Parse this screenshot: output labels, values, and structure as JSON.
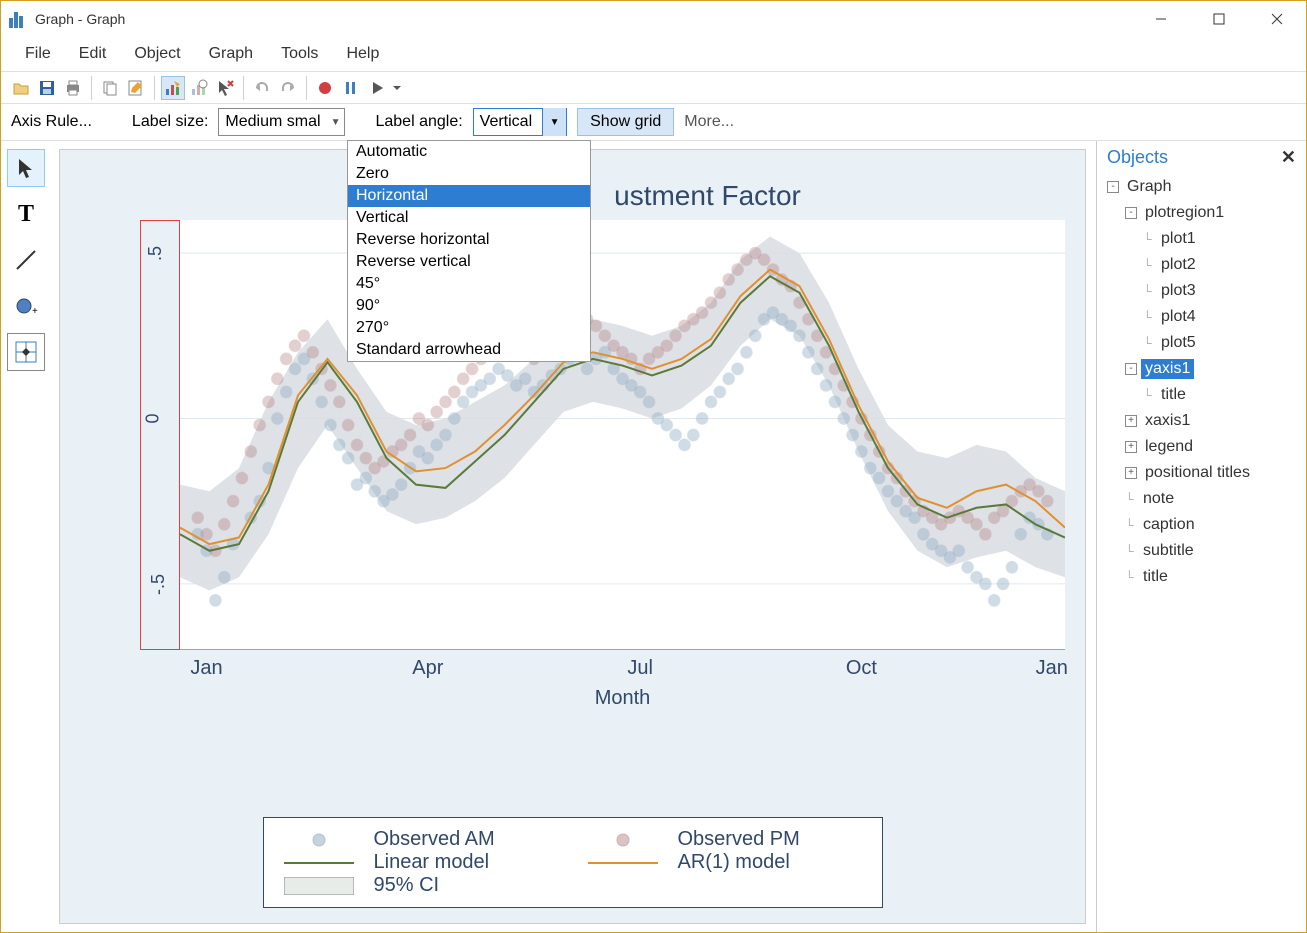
{
  "window": {
    "title": "Graph - Graph"
  },
  "menu": {
    "items": [
      "File",
      "Edit",
      "Object",
      "Graph",
      "Tools",
      "Help"
    ]
  },
  "toolbar2": {
    "axis_rule": "Axis Rule...",
    "label_size_label": "Label size:",
    "label_size_value": "Medium smal",
    "label_angle_label": "Label angle:",
    "label_angle_value": "Vertical",
    "show_grid": "Show grid",
    "more": "More..."
  },
  "dropdown": {
    "options": [
      "Automatic",
      "Zero",
      "Horizontal",
      "Vertical",
      "Reverse horizontal",
      "Reverse vertical",
      "45°",
      "90°",
      "270°",
      "Standard arrowhead"
    ],
    "selected": "Horizontal"
  },
  "chart": {
    "title_suffix": "ustment Factor",
    "x_title": "Month",
    "x_ticks": [
      "Jan",
      "Apr",
      "Jul",
      "Oct",
      "Jan"
    ],
    "x_tick_pos": [
      0.03,
      0.28,
      0.52,
      0.77,
      0.985
    ],
    "y_ticks": [
      "-.5",
      "0",
      ".5"
    ],
    "y_tick_vals": [
      -0.5,
      0,
      0.5
    ],
    "ylim": [
      -0.7,
      0.6
    ],
    "grid_y": [
      -0.5,
      0,
      0.5
    ],
    "ci_upper": [
      -0.2,
      -0.22,
      -0.15,
      0.05,
      0.2,
      0.3,
      0.15,
      0.02,
      -0.02,
      0.0,
      0.05,
      0.1,
      0.18,
      0.28,
      0.3,
      0.28,
      0.25,
      0.28,
      0.35,
      0.48,
      0.55,
      0.5,
      0.35,
      0.15,
      -0.02,
      -0.1,
      -0.12,
      -0.08,
      -0.1,
      -0.18,
      -0.22
    ],
    "ci_lower": [
      -0.48,
      -0.52,
      -0.48,
      -0.35,
      -0.15,
      -0.02,
      -0.15,
      -0.28,
      -0.32,
      -0.3,
      -0.25,
      -0.18,
      -0.08,
      0.02,
      0.05,
      0.03,
      0.0,
      0.03,
      0.1,
      0.22,
      0.3,
      0.25,
      0.1,
      -0.1,
      -0.28,
      -0.4,
      -0.45,
      -0.42,
      -0.4,
      -0.45,
      -0.48
    ],
    "linear": [
      -0.35,
      -0.4,
      -0.38,
      -0.22,
      0.05,
      0.17,
      0.05,
      -0.12,
      -0.2,
      -0.21,
      -0.13,
      -0.05,
      0.05,
      0.15,
      0.18,
      0.16,
      0.13,
      0.16,
      0.22,
      0.35,
      0.43,
      0.38,
      0.22,
      0.02,
      -0.15,
      -0.26,
      -0.3,
      -0.27,
      -0.26,
      -0.32,
      -0.36
    ],
    "ar1": [
      -0.33,
      -0.38,
      -0.36,
      -0.2,
      0.07,
      0.18,
      0.07,
      -0.1,
      -0.16,
      -0.15,
      -0.1,
      -0.02,
      0.07,
      0.17,
      0.2,
      0.18,
      0.15,
      0.18,
      0.24,
      0.37,
      0.45,
      0.4,
      0.24,
      0.04,
      -0.13,
      -0.24,
      -0.27,
      -0.22,
      -0.2,
      -0.25,
      -0.33
    ],
    "scatter_am_color": "#8aa9c1",
    "scatter_pm_color": "#b8888a",
    "ci_color": "#d8dde2",
    "linear_color": "#5a7a3a",
    "ar1_color": "#e09030",
    "bg_color": "#ffffff",
    "grid_color": "#e0e8ef",
    "text_color": "#304869",
    "title_fontsize": 28,
    "axis_fontsize": 20,
    "scatter_am": [
      [
        0.02,
        -0.35
      ],
      [
        0.03,
        -0.4
      ],
      [
        0.04,
        -0.55
      ],
      [
        0.05,
        -0.48
      ],
      [
        0.06,
        -0.38
      ],
      [
        0.08,
        -0.3
      ],
      [
        0.09,
        -0.25
      ],
      [
        0.1,
        -0.15
      ],
      [
        0.11,
        0.0
      ],
      [
        0.12,
        0.08
      ],
      [
        0.13,
        0.15
      ],
      [
        0.14,
        0.18
      ],
      [
        0.15,
        0.12
      ],
      [
        0.16,
        0.05
      ],
      [
        0.17,
        -0.02
      ],
      [
        0.18,
        -0.08
      ],
      [
        0.19,
        -0.12
      ],
      [
        0.2,
        -0.2
      ],
      [
        0.21,
        -0.18
      ],
      [
        0.22,
        -0.22
      ],
      [
        0.23,
        -0.25
      ],
      [
        0.24,
        -0.23
      ],
      [
        0.25,
        -0.2
      ],
      [
        0.26,
        -0.15
      ],
      [
        0.27,
        -0.1
      ],
      [
        0.28,
        -0.12
      ],
      [
        0.29,
        -0.08
      ],
      [
        0.3,
        -0.05
      ],
      [
        0.31,
        0.0
      ],
      [
        0.32,
        0.05
      ],
      [
        0.33,
        0.08
      ],
      [
        0.34,
        0.1
      ],
      [
        0.35,
        0.12
      ],
      [
        0.36,
        0.15
      ],
      [
        0.37,
        0.13
      ],
      [
        0.38,
        0.1
      ],
      [
        0.39,
        0.12
      ],
      [
        0.4,
        0.08
      ],
      [
        0.41,
        0.1
      ],
      [
        0.42,
        0.13
      ],
      [
        0.43,
        0.15
      ],
      [
        0.44,
        0.18
      ],
      [
        0.45,
        0.2
      ],
      [
        0.46,
        0.15
      ],
      [
        0.47,
        0.18
      ],
      [
        0.48,
        0.2
      ],
      [
        0.49,
        0.15
      ],
      [
        0.5,
        0.12
      ],
      [
        0.51,
        0.1
      ],
      [
        0.52,
        0.08
      ],
      [
        0.53,
        0.05
      ],
      [
        0.54,
        0.0
      ],
      [
        0.55,
        -0.02
      ],
      [
        0.56,
        -0.05
      ],
      [
        0.57,
        -0.08
      ],
      [
        0.58,
        -0.05
      ],
      [
        0.59,
        0.0
      ],
      [
        0.6,
        0.05
      ],
      [
        0.61,
        0.08
      ],
      [
        0.62,
        0.12
      ],
      [
        0.63,
        0.15
      ],
      [
        0.64,
        0.2
      ],
      [
        0.65,
        0.25
      ],
      [
        0.66,
        0.3
      ],
      [
        0.67,
        0.32
      ],
      [
        0.68,
        0.3
      ],
      [
        0.69,
        0.28
      ],
      [
        0.7,
        0.25
      ],
      [
        0.71,
        0.2
      ],
      [
        0.72,
        0.15
      ],
      [
        0.73,
        0.1
      ],
      [
        0.74,
        0.05
      ],
      [
        0.75,
        0.0
      ],
      [
        0.76,
        -0.05
      ],
      [
        0.77,
        -0.1
      ],
      [
        0.78,
        -0.15
      ],
      [
        0.79,
        -0.18
      ],
      [
        0.8,
        -0.22
      ],
      [
        0.81,
        -0.25
      ],
      [
        0.82,
        -0.28
      ],
      [
        0.83,
        -0.3
      ],
      [
        0.84,
        -0.35
      ],
      [
        0.85,
        -0.38
      ],
      [
        0.86,
        -0.4
      ],
      [
        0.87,
        -0.42
      ],
      [
        0.88,
        -0.4
      ],
      [
        0.89,
        -0.45
      ],
      [
        0.9,
        -0.48
      ],
      [
        0.91,
        -0.5
      ],
      [
        0.92,
        -0.55
      ],
      [
        0.93,
        -0.5
      ],
      [
        0.94,
        -0.45
      ],
      [
        0.95,
        -0.35
      ],
      [
        0.96,
        -0.3
      ],
      [
        0.97,
        -0.32
      ],
      [
        0.98,
        -0.35
      ]
    ],
    "scatter_pm": [
      [
        0.02,
        -0.3
      ],
      [
        0.03,
        -0.35
      ],
      [
        0.04,
        -0.4
      ],
      [
        0.05,
        -0.32
      ],
      [
        0.06,
        -0.25
      ],
      [
        0.07,
        -0.18
      ],
      [
        0.08,
        -0.1
      ],
      [
        0.09,
        -0.02
      ],
      [
        0.1,
        0.05
      ],
      [
        0.11,
        0.12
      ],
      [
        0.12,
        0.18
      ],
      [
        0.13,
        0.22
      ],
      [
        0.14,
        0.25
      ],
      [
        0.15,
        0.2
      ],
      [
        0.16,
        0.15
      ],
      [
        0.17,
        0.1
      ],
      [
        0.18,
        0.05
      ],
      [
        0.19,
        -0.02
      ],
      [
        0.2,
        -0.08
      ],
      [
        0.21,
        -0.12
      ],
      [
        0.22,
        -0.15
      ],
      [
        0.23,
        -0.13
      ],
      [
        0.24,
        -0.1
      ],
      [
        0.25,
        -0.08
      ],
      [
        0.26,
        -0.05
      ],
      [
        0.27,
        0.0
      ],
      [
        0.28,
        -0.02
      ],
      [
        0.29,
        0.02
      ],
      [
        0.3,
        0.05
      ],
      [
        0.31,
        0.08
      ],
      [
        0.32,
        0.12
      ],
      [
        0.33,
        0.15
      ],
      [
        0.34,
        0.18
      ],
      [
        0.35,
        0.2
      ],
      [
        0.36,
        0.22
      ],
      [
        0.37,
        0.25
      ],
      [
        0.38,
        0.23
      ],
      [
        0.39,
        0.2
      ],
      [
        0.4,
        0.18
      ],
      [
        0.41,
        0.2
      ],
      [
        0.42,
        0.22
      ],
      [
        0.43,
        0.25
      ],
      [
        0.44,
        0.28
      ],
      [
        0.45,
        0.32
      ],
      [
        0.46,
        0.3
      ],
      [
        0.47,
        0.28
      ],
      [
        0.48,
        0.25
      ],
      [
        0.49,
        0.22
      ],
      [
        0.5,
        0.2
      ],
      [
        0.51,
        0.18
      ],
      [
        0.52,
        0.15
      ],
      [
        0.53,
        0.18
      ],
      [
        0.54,
        0.2
      ],
      [
        0.55,
        0.22
      ],
      [
        0.56,
        0.25
      ],
      [
        0.57,
        0.28
      ],
      [
        0.58,
        0.3
      ],
      [
        0.59,
        0.32
      ],
      [
        0.6,
        0.35
      ],
      [
        0.61,
        0.38
      ],
      [
        0.62,
        0.42
      ],
      [
        0.63,
        0.45
      ],
      [
        0.64,
        0.48
      ],
      [
        0.65,
        0.5
      ],
      [
        0.66,
        0.48
      ],
      [
        0.67,
        0.45
      ],
      [
        0.68,
        0.42
      ],
      [
        0.69,
        0.4
      ],
      [
        0.7,
        0.35
      ],
      [
        0.71,
        0.3
      ],
      [
        0.72,
        0.25
      ],
      [
        0.73,
        0.2
      ],
      [
        0.74,
        0.15
      ],
      [
        0.75,
        0.1
      ],
      [
        0.76,
        0.05
      ],
      [
        0.77,
        0.0
      ],
      [
        0.78,
        -0.05
      ],
      [
        0.79,
        -0.1
      ],
      [
        0.8,
        -0.15
      ],
      [
        0.81,
        -0.18
      ],
      [
        0.82,
        -0.22
      ],
      [
        0.83,
        -0.25
      ],
      [
        0.84,
        -0.28
      ],
      [
        0.85,
        -0.3
      ],
      [
        0.86,
        -0.32
      ],
      [
        0.87,
        -0.3
      ],
      [
        0.88,
        -0.28
      ],
      [
        0.89,
        -0.3
      ],
      [
        0.9,
        -0.32
      ],
      [
        0.91,
        -0.35
      ],
      [
        0.92,
        -0.3
      ],
      [
        0.93,
        -0.28
      ],
      [
        0.94,
        -0.25
      ],
      [
        0.95,
        -0.22
      ],
      [
        0.96,
        -0.2
      ],
      [
        0.97,
        -0.22
      ],
      [
        0.98,
        -0.25
      ]
    ]
  },
  "legend": {
    "items": [
      {
        "label": "Observed AM",
        "type": "dot",
        "color": "#8aa9c1"
      },
      {
        "label": "Observed PM",
        "type": "dot",
        "color": "#b8888a"
      },
      {
        "label": "Linear model",
        "type": "line",
        "color": "#5a7a3a"
      },
      {
        "label": "AR(1) model",
        "type": "line",
        "color": "#e09030"
      },
      {
        "label": "95% CI",
        "type": "box",
        "color": "#e8ece8"
      }
    ]
  },
  "objects_panel": {
    "title": "Objects",
    "tree": [
      {
        "label": "Graph",
        "indent": 0,
        "toggle": "-"
      },
      {
        "label": "plotregion1",
        "indent": 1,
        "toggle": "-"
      },
      {
        "label": "plot1",
        "indent": 2,
        "leaf": true
      },
      {
        "label": "plot2",
        "indent": 2,
        "leaf": true
      },
      {
        "label": "plot3",
        "indent": 2,
        "leaf": true
      },
      {
        "label": "plot4",
        "indent": 2,
        "leaf": true
      },
      {
        "label": "plot5",
        "indent": 2,
        "leaf": true
      },
      {
        "label": "yaxis1",
        "indent": 1,
        "toggle": "-",
        "selected": true
      },
      {
        "label": "title",
        "indent": 2,
        "leaf": true
      },
      {
        "label": "xaxis1",
        "indent": 1,
        "toggle": "+"
      },
      {
        "label": "legend",
        "indent": 1,
        "toggle": "+"
      },
      {
        "label": "positional titles",
        "indent": 1,
        "toggle": "+"
      },
      {
        "label": "note",
        "indent": 1,
        "leaf": true
      },
      {
        "label": "caption",
        "indent": 1,
        "leaf": true
      },
      {
        "label": "subtitle",
        "indent": 1,
        "leaf": true
      },
      {
        "label": "title",
        "indent": 1,
        "leaf": true
      }
    ]
  }
}
